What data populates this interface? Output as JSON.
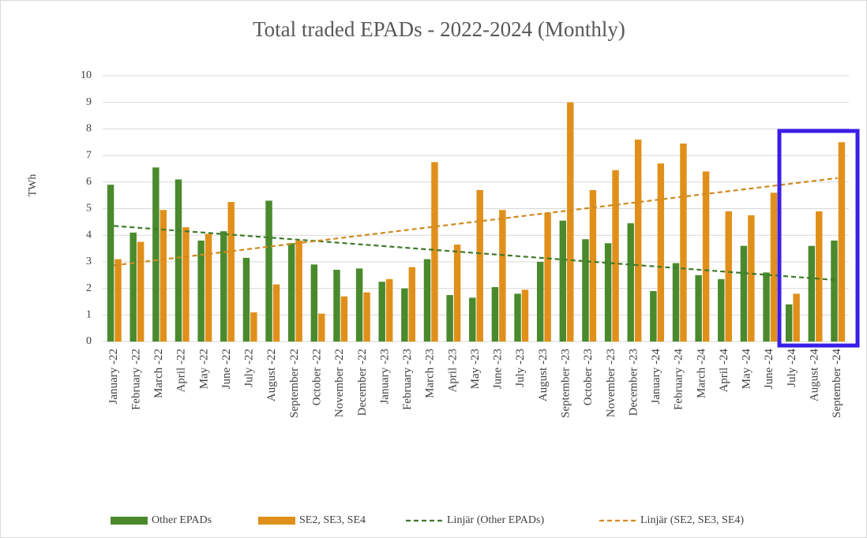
{
  "chart_data": {
    "type": "bar",
    "title": "Total traded EPADs - 2022-2024 (Monthly)",
    "y_label": "TWh",
    "categories": [
      "January -22",
      "February -22",
      "March -22",
      "April -22",
      "May -22",
      "June -22",
      "July -22",
      "August -22",
      "September -22",
      "October -22",
      "November -22",
      "December -22",
      "January -23",
      "February -23",
      "March -23",
      "April -23",
      "May -23",
      "June -23",
      "July -23",
      "August -23",
      "September -23",
      "October -23",
      "November -23",
      "December -23",
      "January -24",
      "February -24",
      "March -24",
      "April -24",
      "May -24",
      "June -24",
      "July -24",
      "August -24",
      "September -24"
    ],
    "series": [
      {
        "name": "Other EPADs",
        "color": "#4a8a2c",
        "values": [
          5.9,
          4.1,
          6.55,
          6.1,
          3.8,
          4.15,
          3.15,
          5.3,
          3.7,
          2.9,
          2.7,
          2.75,
          2.25,
          2.0,
          3.1,
          1.75,
          1.65,
          2.05,
          1.8,
          3.0,
          4.55,
          3.85,
          3.7,
          4.45,
          1.9,
          2.95,
          2.5,
          2.35,
          3.6,
          2.6,
          1.4,
          3.6,
          3.8
        ],
        "trendline": {
          "name": "Linjär (Other EPADs)",
          "color": "#3f7a2a"
        }
      },
      {
        "name": "SE2, SE3, SE4",
        "color": "#e0901a",
        "values": [
          3.1,
          3.75,
          4.95,
          4.3,
          4.05,
          5.25,
          1.1,
          2.15,
          3.8,
          1.05,
          1.7,
          1.85,
          2.35,
          2.8,
          6.75,
          3.65,
          5.7,
          4.95,
          1.95,
          4.85,
          9.0,
          5.7,
          6.45,
          7.6,
          6.7,
          7.45,
          6.4,
          4.9,
          4.75,
          5.6,
          1.8,
          4.9,
          7.5
        ],
        "trendline": {
          "name": "Linjär (SE2, SE3, SE4)",
          "color": "#d08a1e"
        }
      }
    ],
    "ylim": [
      0,
      10
    ],
    "yticks": [
      0,
      1,
      2,
      3,
      4,
      5,
      6,
      7,
      8,
      9,
      10
    ],
    "grid": true
  }
}
